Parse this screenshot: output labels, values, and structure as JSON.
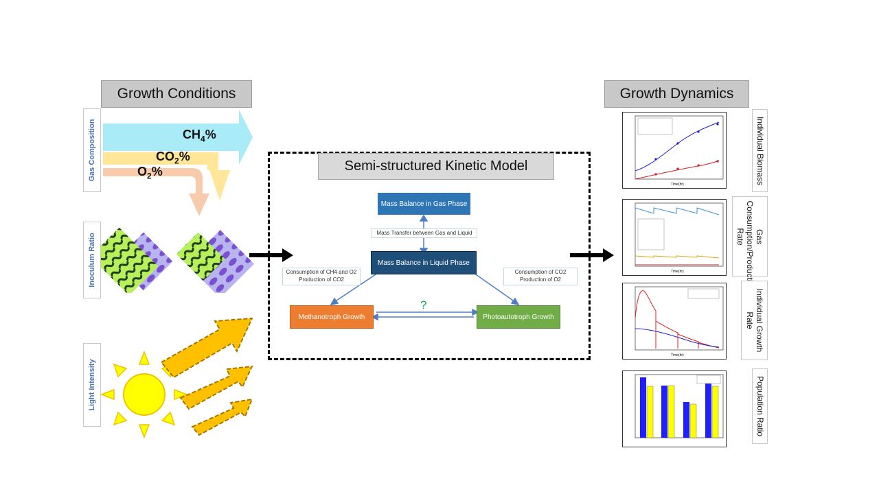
{
  "left": {
    "header": "Growth Conditions",
    "labels": {
      "gas": "Gas Composition",
      "inoculum": "Inoculum Ratio",
      "light": "Light Intensity"
    },
    "gases": {
      "ch4": "CH4%",
      "co2": "CO2%",
      "o2": "O2%"
    }
  },
  "model": {
    "title": "Semi-structured Kinetic Model",
    "gas_phase": "Mass Balance in Gas Phase",
    "transfer": "Mass Transfer between Gas and Liquid",
    "liquid_phase": "Mass Balance in Liquid Phase",
    "left_note": [
      "Consumption of CH4 and O2",
      "Production of CO2"
    ],
    "right_note": [
      "Consumption of CO2",
      "Production of O2"
    ],
    "methanotroph": "Methanotroph Growth",
    "photoautotroph": "Photoautotroph Growth",
    "question": "?"
  },
  "right": {
    "header": "Growth Dynamics",
    "labels": {
      "biomass": "Individual Biomass",
      "gas_rate": "Gas Consumption/Production Rate",
      "growth_rate": "Individual Growth Rate",
      "population": "Population Ratio"
    }
  },
  "colors": {
    "blue_box": "#2e75b6",
    "dark_box": "#1f4e79",
    "orange_box": "#ed7d31",
    "green_box": "#70ad47"
  }
}
